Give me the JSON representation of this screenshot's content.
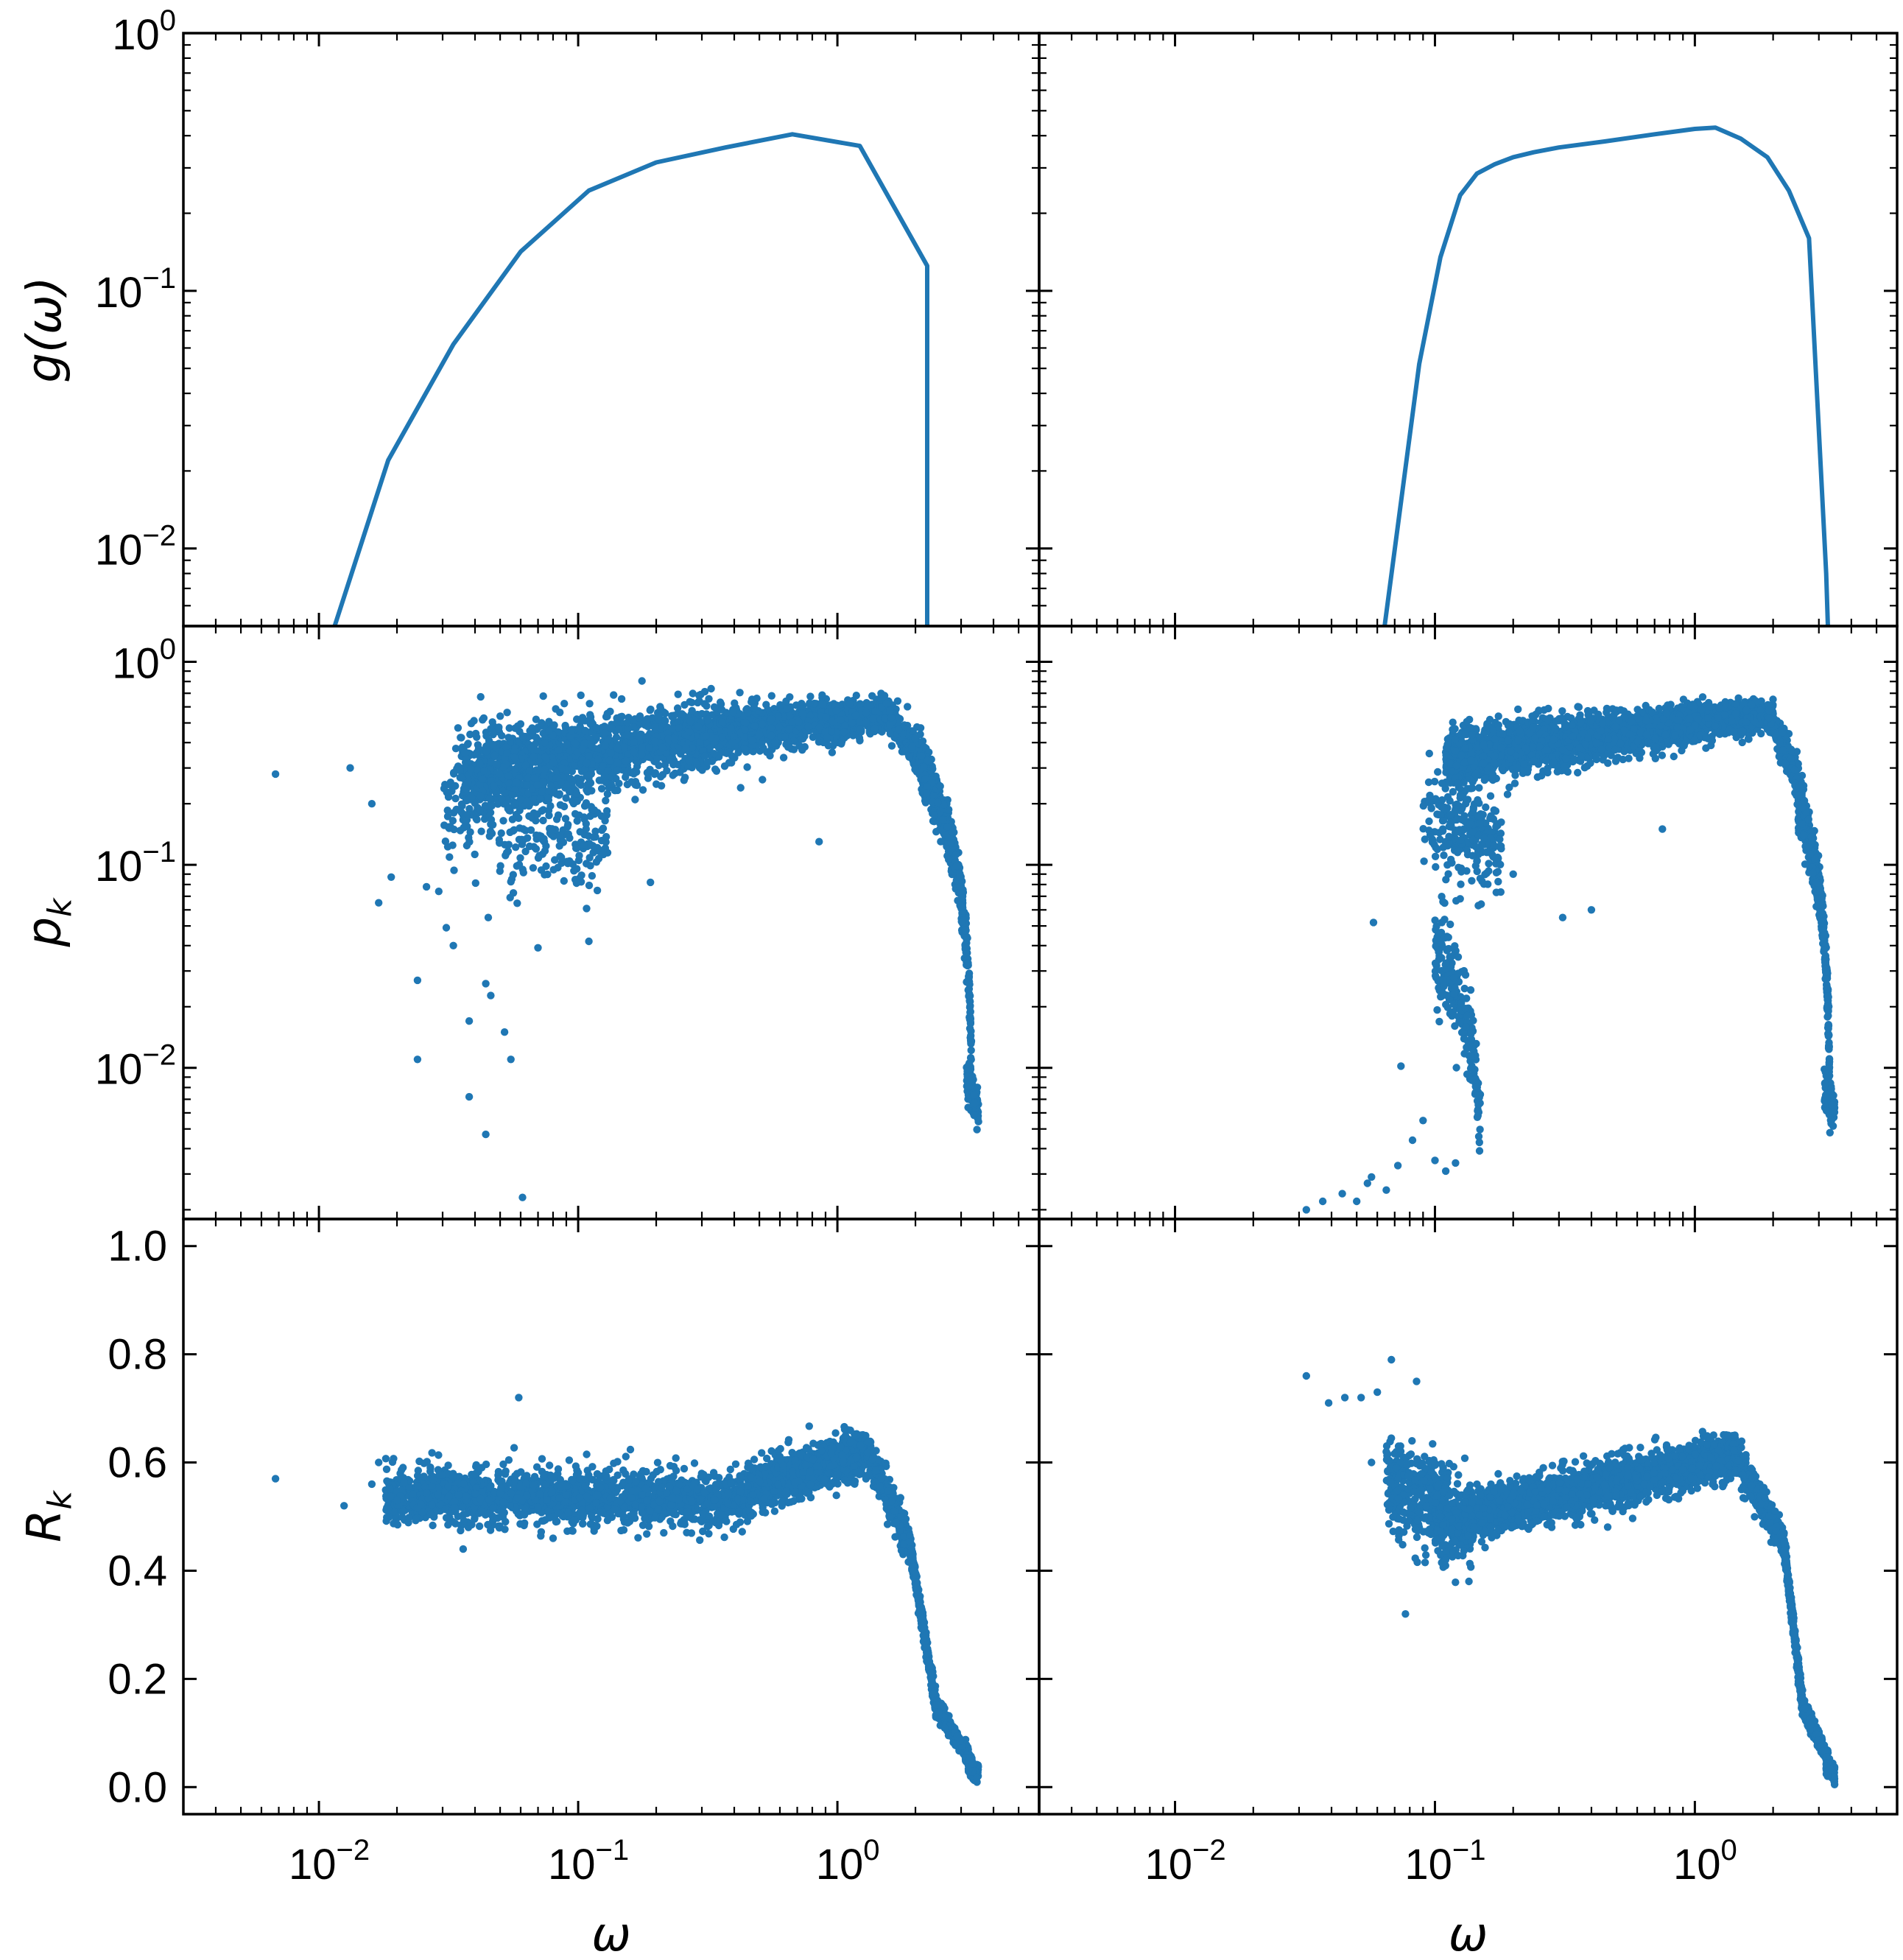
{
  "colors": {
    "series": "#1f77b4",
    "axis": "#000000",
    "background": "#ffffff"
  },
  "axis_labels": {
    "x": "ω",
    "row_y": [
      {
        "base": "g(ω)",
        "sub": ""
      },
      {
        "base": "p",
        "sub": "k"
      },
      {
        "base": "R",
        "sub": "k"
      }
    ]
  },
  "chart_data": [
    {
      "type": "line",
      "panel": "top-left",
      "x_scale": "log",
      "y_scale": "log",
      "xlim": [
        0.003,
        6
      ],
      "ylim": [
        0.005,
        1
      ],
      "xlabel": "",
      "ylabel": "g(ω)",
      "x_ticks": [
        "10^-2",
        "10^-1",
        "10^0"
      ],
      "y_ticks": [
        "10^-2",
        "10^-1",
        "10^0"
      ],
      "grid": false,
      "series": [
        {
          "x": [
            0.0115,
            0.0185,
            0.033,
            0.06,
            0.11,
            0.2,
            0.37,
            0.67,
            1.22,
            2.22,
            2.22
          ],
          "y": [
            0.005,
            0.022,
            0.062,
            0.142,
            0.245,
            0.315,
            0.36,
            0.405,
            0.365,
            0.125,
            0.005
          ]
        }
      ]
    },
    {
      "type": "line",
      "panel": "top-right",
      "x_scale": "log",
      "y_scale": "log",
      "xlim": [
        0.003,
        6
      ],
      "ylim": [
        0.005,
        1
      ],
      "xlabel": "",
      "ylabel": "",
      "x_ticks": [
        "10^-2",
        "10^-1",
        "10^0"
      ],
      "y_ticks": [
        "10^-2",
        "10^-1",
        "10^0"
      ],
      "grid": false,
      "series": [
        {
          "x": [
            0.064,
            0.087,
            0.105,
            0.125,
            0.145,
            0.17,
            0.2,
            0.24,
            0.3,
            0.45,
            0.7,
            1.0,
            1.2,
            1.5,
            1.9,
            2.3,
            2.75,
            3.2,
            3.25
          ],
          "y": [
            0.005,
            0.052,
            0.135,
            0.235,
            0.285,
            0.31,
            0.33,
            0.345,
            0.36,
            0.38,
            0.405,
            0.425,
            0.43,
            0.39,
            0.33,
            0.245,
            0.16,
            0.008,
            0.005
          ]
        }
      ]
    },
    {
      "type": "scatter",
      "panel": "middle-left",
      "x_scale": "log",
      "y_scale": "log",
      "xlim": [
        0.003,
        6
      ],
      "ylim": [
        0.0018,
        1.5
      ],
      "xlabel": "",
      "ylabel": "p_k",
      "x_ticks": [
        "10^-2",
        "10^-1",
        "10^0"
      ],
      "y_ticks": [
        "10^-2",
        "10^-1",
        "10^0"
      ],
      "grid": false,
      "outliers": [
        [
          0.0068,
          0.28
        ],
        [
          0.0132,
          0.3
        ],
        [
          0.016,
          0.2
        ],
        [
          0.017,
          0.065
        ],
        [
          0.019,
          0.087
        ],
        [
          0.024,
          0.027
        ],
        [
          0.024,
          0.011
        ],
        [
          0.031,
          0.049
        ],
        [
          0.029,
          0.074
        ],
        [
          0.038,
          0.0072
        ],
        [
          0.044,
          0.0047
        ],
        [
          0.046,
          0.0227
        ],
        [
          0.061,
          0.0023
        ],
        [
          0.055,
          0.011
        ],
        [
          0.038,
          0.017
        ],
        [
          0.052,
          0.015
        ],
        [
          0.044,
          0.026
        ],
        [
          0.033,
          0.04
        ],
        [
          0.11,
          0.042
        ],
        [
          0.85,
          0.13
        ],
        [
          0.19,
          0.082
        ],
        [
          0.07,
          0.039
        ],
        [
          0.026,
          0.078
        ],
        [
          0.045,
          0.055
        ]
      ],
      "bands": [
        {
          "x": [
            0.035,
            1.5
          ],
          "y_center": [
            0.27,
            0.55
          ],
          "y_spread": [
            1.6,
            1.18
          ],
          "n": 2600
        },
        {
          "x": [
            0.03,
            0.13
          ],
          "y_center": [
            0.2,
            0.13
          ],
          "y_spread": [
            2.2,
            1.6
          ],
          "n": 320
        },
        {
          "x": [
            1.45,
            2.15
          ],
          "y_center": [
            0.6,
            0.3
          ],
          "y_spread": [
            1.15,
            1.25
          ],
          "n": 300
        },
        {
          "x": [
            2.1,
            3.3
          ],
          "y_center": [
            0.3,
            0.009
          ],
          "y_spread": [
            1.3,
            1.25
          ],
          "n": 600
        },
        {
          "x": [
            3.15,
            3.5
          ],
          "y_center": [
            0.009,
            0.006
          ],
          "y_spread": [
            1.25,
            1.2
          ],
          "n": 120
        }
      ]
    },
    {
      "type": "scatter",
      "panel": "middle-right",
      "x_scale": "log",
      "y_scale": "log",
      "xlim": [
        0.003,
        6
      ],
      "ylim": [
        0.0018,
        1.5
      ],
      "xlabel": "",
      "ylabel": "",
      "x_ticks": [
        "10^-2",
        "10^-1",
        "10^0"
      ],
      "y_ticks": [
        "10^-2",
        "10^-1",
        "10^0"
      ],
      "grid": false,
      "outliers": [
        [
          0.032,
          0.002
        ],
        [
          0.037,
          0.0022
        ],
        [
          0.044,
          0.0024
        ],
        [
          0.05,
          0.0022
        ],
        [
          0.055,
          0.0027
        ],
        [
          0.057,
          0.0029
        ],
        [
          0.058,
          0.052
        ],
        [
          0.065,
          0.0025
        ],
        [
          0.072,
          0.0033
        ],
        [
          0.31,
          0.055
        ],
        [
          0.75,
          0.15
        ],
        [
          0.2,
          0.09
        ],
        [
          0.4,
          0.06
        ],
        [
          0.09,
          0.0055
        ],
        [
          0.1,
          0.0035
        ],
        [
          0.082,
          0.0044
        ],
        [
          0.074,
          0.0102
        ],
        [
          0.12,
          0.0034
        ],
        [
          0.11,
          0.0031
        ]
      ],
      "bands": [
        {
          "x": [
            0.11,
            2.0
          ],
          "y_center": [
            0.33,
            0.55
          ],
          "y_spread": [
            1.35,
            1.15
          ],
          "n": 2600
        },
        {
          "x": [
            0.09,
            0.18
          ],
          "y_center": [
            0.18,
            0.12
          ],
          "y_spread": [
            1.8,
            1.6
          ],
          "n": 260
        },
        {
          "x": [
            0.1,
            0.15
          ],
          "y_center": [
            0.04,
            0.005
          ],
          "y_spread": [
            1.6,
            1.5
          ],
          "n": 220
        },
        {
          "x": [
            1.9,
            2.6
          ],
          "y_center": [
            0.55,
            0.2
          ],
          "y_spread": [
            1.15,
            1.25
          ],
          "n": 280
        },
        {
          "x": [
            2.5,
            3.3
          ],
          "y_center": [
            0.2,
            0.009
          ],
          "y_spread": [
            1.3,
            1.25
          ],
          "n": 550
        },
        {
          "x": [
            3.15,
            3.45
          ],
          "y_center": [
            0.008,
            0.006
          ],
          "y_spread": [
            1.25,
            1.2
          ],
          "n": 120
        }
      ]
    },
    {
      "type": "scatter",
      "panel": "bottom-left",
      "x_scale": "log",
      "y_scale": "linear",
      "xlim": [
        0.003,
        6
      ],
      "ylim": [
        -0.05,
        1.05
      ],
      "xlabel": "ω",
      "ylabel": "R_k",
      "x_ticks": [
        "10^-2",
        "10^-1",
        "10^0"
      ],
      "y_ticks": [
        "0.0",
        "0.2",
        "0.4",
        "0.6",
        "0.8",
        "1.0"
      ],
      "grid": false,
      "outliers": [
        [
          0.0068,
          0.57
        ],
        [
          0.0125,
          0.52
        ],
        [
          0.016,
          0.56
        ],
        [
          0.017,
          0.6
        ],
        [
          0.059,
          0.72
        ],
        [
          0.036,
          0.44
        ],
        [
          0.02,
          0.53
        ],
        [
          0.08,
          0.46
        ]
      ],
      "bands": [
        {
          "x": [
            0.018,
            0.45
          ],
          "y_center": [
            0.54,
            0.53
          ],
          "y_spread": [
            0.04,
            0.04
          ],
          "n": 1800
        },
        {
          "x": [
            0.45,
            1.3
          ],
          "y_center": [
            0.55,
            0.62
          ],
          "y_spread": [
            0.035,
            0.035
          ],
          "n": 1200
        },
        {
          "x": [
            1.3,
            1.9
          ],
          "y_center": [
            0.62,
            0.45
          ],
          "y_spread": [
            0.03,
            0.025
          ],
          "n": 350
        },
        {
          "x": [
            1.9,
            2.4
          ],
          "y_center": [
            0.45,
            0.15
          ],
          "y_spread": [
            0.02,
            0.02
          ],
          "n": 300
        },
        {
          "x": [
            2.4,
            3.3
          ],
          "y_center": [
            0.15,
            0.045
          ],
          "y_spread": [
            0.015,
            0.012
          ],
          "n": 350
        },
        {
          "x": [
            3.2,
            3.5
          ],
          "y_center": [
            0.04,
            0.025
          ],
          "y_spread": [
            0.015,
            0.015
          ],
          "n": 100
        }
      ]
    },
    {
      "type": "scatter",
      "panel": "bottom-right",
      "x_scale": "log",
      "y_scale": "linear",
      "xlim": [
        0.003,
        6
      ],
      "ylim": [
        -0.05,
        1.05
      ],
      "xlabel": "ω",
      "ylabel": "",
      "x_ticks": [
        "10^-2",
        "10^-1",
        "10^0"
      ],
      "y_ticks": [
        "0.0",
        "0.2",
        "0.4",
        "0.6",
        "0.8",
        "1.0"
      ],
      "grid": false,
      "outliers": [
        [
          0.032,
          0.76
        ],
        [
          0.039,
          0.71
        ],
        [
          0.045,
          0.72
        ],
        [
          0.052,
          0.72
        ],
        [
          0.06,
          0.73
        ],
        [
          0.068,
          0.79
        ],
        [
          0.077,
          0.32
        ],
        [
          0.085,
          0.75
        ],
        [
          0.065,
          0.62
        ],
        [
          0.057,
          0.6
        ],
        [
          0.071,
          0.59
        ]
      ],
      "bands": [
        {
          "x": [
            0.065,
            0.11
          ],
          "y_center": [
            0.56,
            0.52
          ],
          "y_spread": [
            0.07,
            0.07
          ],
          "n": 350
        },
        {
          "x": [
            0.1,
            0.14
          ],
          "y_center": [
            0.5,
            0.48
          ],
          "y_spread": [
            0.06,
            0.06
          ],
          "n": 250
        },
        {
          "x": [
            0.13,
            1.4
          ],
          "y_center": [
            0.5,
            0.61
          ],
          "y_spread": [
            0.035,
            0.035
          ],
          "n": 2200
        },
        {
          "x": [
            1.4,
            2.2
          ],
          "y_center": [
            0.62,
            0.45
          ],
          "y_spread": [
            0.03,
            0.025
          ],
          "n": 350
        },
        {
          "x": [
            2.2,
            2.6
          ],
          "y_center": [
            0.45,
            0.15
          ],
          "y_spread": [
            0.02,
            0.02
          ],
          "n": 280
        },
        {
          "x": [
            2.6,
            3.3
          ],
          "y_center": [
            0.15,
            0.045
          ],
          "y_spread": [
            0.015,
            0.012
          ],
          "n": 300
        },
        {
          "x": [
            3.2,
            3.45
          ],
          "y_center": [
            0.04,
            0.025
          ],
          "y_spread": [
            0.015,
            0.015
          ],
          "n": 100
        }
      ]
    }
  ]
}
